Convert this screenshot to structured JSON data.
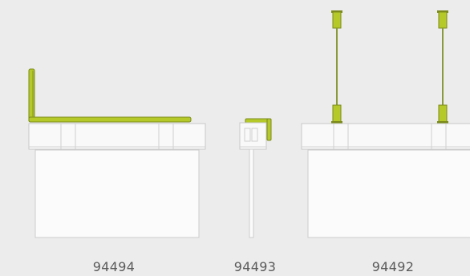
{
  "colors": {
    "background": "#ececec",
    "accent": "#b5c929",
    "accent_dark": "#7b8a1a",
    "panel": "#f9f9f9",
    "outline": "#c9c9c9"
  },
  "variants": [
    {
      "code": "94494",
      "mount": "wall-bracket-side"
    },
    {
      "code": "94493",
      "mount": "wall-bracket-end"
    },
    {
      "code": "94492",
      "mount": "ceiling-suspension"
    }
  ]
}
